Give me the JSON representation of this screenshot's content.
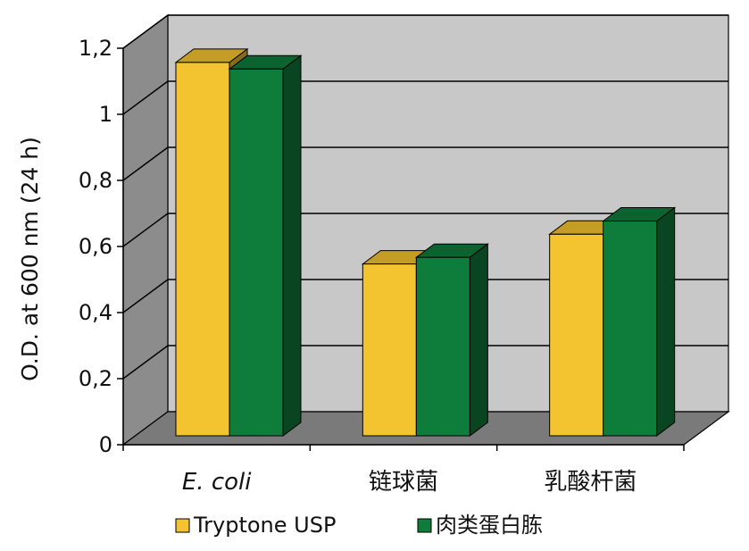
{
  "chart_data": {
    "type": "bar",
    "style": "3d-clustered-column",
    "ylabel": "O.D.  at 600 nm (24 h)",
    "xlabel": "",
    "ylim": [
      0,
      1.2
    ],
    "y_ticks": [
      "0",
      "0,2",
      "0,4",
      "0,6",
      "0,8",
      "1",
      "1,2"
    ],
    "categories": [
      "E. coli",
      "链球菌",
      "乳酸杆菌"
    ],
    "category_italic": [
      true,
      false,
      false
    ],
    "series": [
      {
        "name": "Tryptone USP",
        "values": [
          1.13,
          0.52,
          0.61
        ],
        "color": "#F4C430"
      },
      {
        "name": "肉类蛋白胨",
        "values": [
          1.11,
          0.54,
          0.65
        ],
        "color": "#0E7D3B"
      }
    ],
    "grid": true,
    "legend_position": "bottom",
    "colors": {
      "wall": "#C8C8C8",
      "side_wall": "#8C8C8C",
      "floor": "#7A7A7A"
    }
  }
}
